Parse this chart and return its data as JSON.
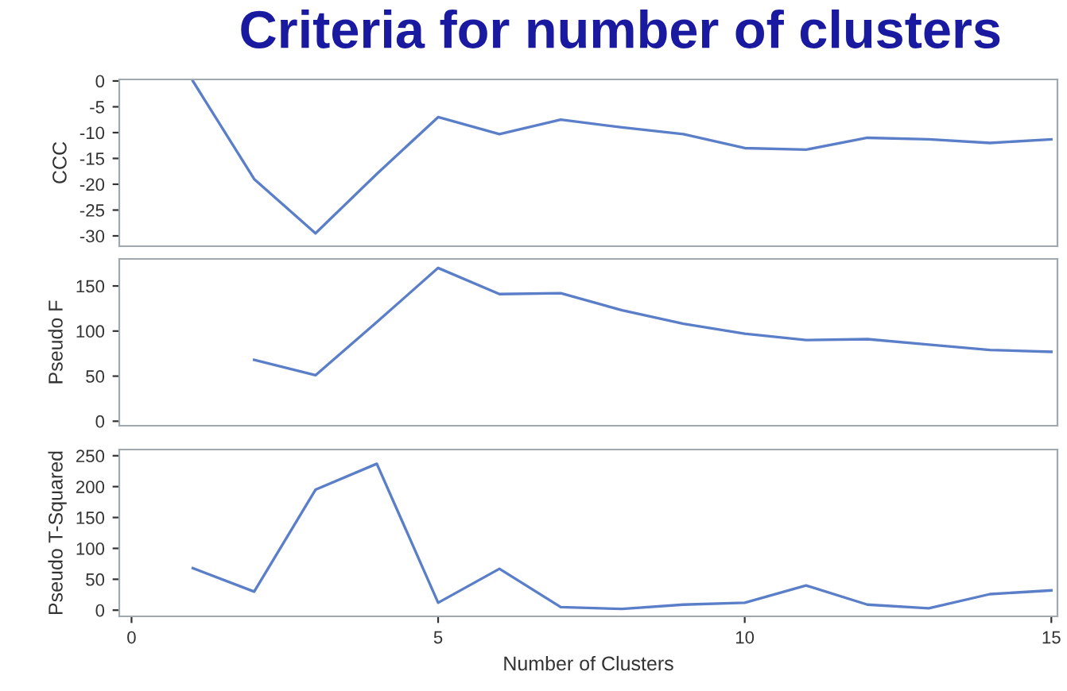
{
  "chart_data": [
    {
      "type": "line",
      "title": "Criteria for number of clusters",
      "ylabel": "CCC",
      "x": [
        1,
        2,
        3,
        4,
        5,
        6,
        7,
        8,
        9,
        10,
        11,
        12,
        13,
        14,
        15
      ],
      "series": [
        {
          "color": "#5b7ec8",
          "values": [
            0,
            -19,
            -29.5,
            -18,
            -7,
            -10.3,
            -7.5,
            -9,
            -10.3,
            -13,
            -13.3,
            -11,
            -11.3,
            -12,
            -11.3
          ]
        }
      ],
      "xlim": [
        -0.2,
        15.1
      ],
      "ylim": [
        -32,
        0.3
      ],
      "yticks": [
        0,
        -5,
        -10,
        -15,
        -20,
        -25,
        -30
      ],
      "tick_labels": "y",
      "grid": false,
      "legend": false
    },
    {
      "type": "line",
      "ylabel": "Pseudo F",
      "series": [
        {
          "color": "#5b7ec8",
          "x": [
            2,
            3,
            4,
            5,
            6,
            7,
            8,
            9,
            10,
            11,
            12,
            13,
            14,
            15
          ],
          "values": [
            68,
            51,
            110,
            170,
            141,
            142,
            123,
            108,
            97,
            90,
            91,
            85,
            79,
            77
          ]
        }
      ],
      "xlim": [
        -0.2,
        15.1
      ],
      "ylim": [
        -5,
        180
      ],
      "yticks": [
        0,
        50,
        100,
        150
      ],
      "tick_labels": "y",
      "grid": false,
      "legend": false
    },
    {
      "type": "line",
      "ylabel": "Pseudo T-Squared",
      "xlabel": "Number of Clusters",
      "x": [
        1,
        2,
        3,
        4,
        5,
        6,
        7,
        8,
        9,
        10,
        11,
        12,
        13,
        14,
        15
      ],
      "series": [
        {
          "color": "#5b7ec8",
          "values": [
            68,
            30,
            195,
            237,
            12,
            67,
            5,
            2,
            9,
            12,
            40,
            9,
            3,
            26,
            32
          ]
        }
      ],
      "xlim": [
        -0.2,
        15.1
      ],
      "ylim": [
        -10,
        260
      ],
      "yticks": [
        0,
        50,
        100,
        150,
        200,
        250
      ],
      "xticks": [
        0,
        5,
        10,
        15
      ],
      "grid": false,
      "legend": false
    }
  ]
}
